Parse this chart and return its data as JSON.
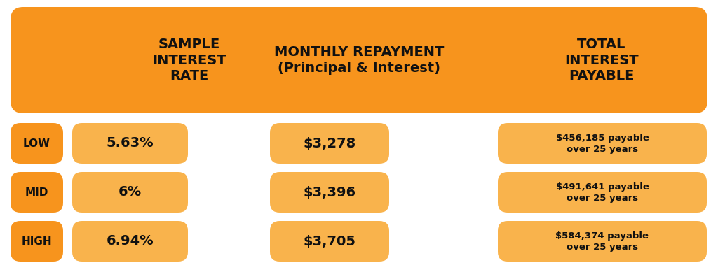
{
  "bg_color": "#ffffff",
  "header_bg": "#F7941D",
  "orange_dark": "#F7941D",
  "orange_light": "#F9B34C",
  "text_dark": "#111111",
  "header_col1": "SAMPLE\nINTEREST\nRATE",
  "header_col2": "MONTHLY REPAYMENT\n(Principal & Interest)",
  "header_col3": "TOTAL\nINTEREST\nPAYABLE",
  "rows": [
    {
      "label": "LOW",
      "rate": "5.63%",
      "monthly": "$3,278",
      "total": "$456,185 payable\nover 25 years"
    },
    {
      "label": "MID",
      "rate": "6%",
      "monthly": "$3,396",
      "total": "$491,641 payable\nover 25 years"
    },
    {
      "label": "HIGH",
      "rate": "6.94%",
      "monthly": "$3,705",
      "total": "$584,374 payable\nover 25 years"
    }
  ],
  "figw": 10.24,
  "figh": 3.79,
  "dpi": 100
}
